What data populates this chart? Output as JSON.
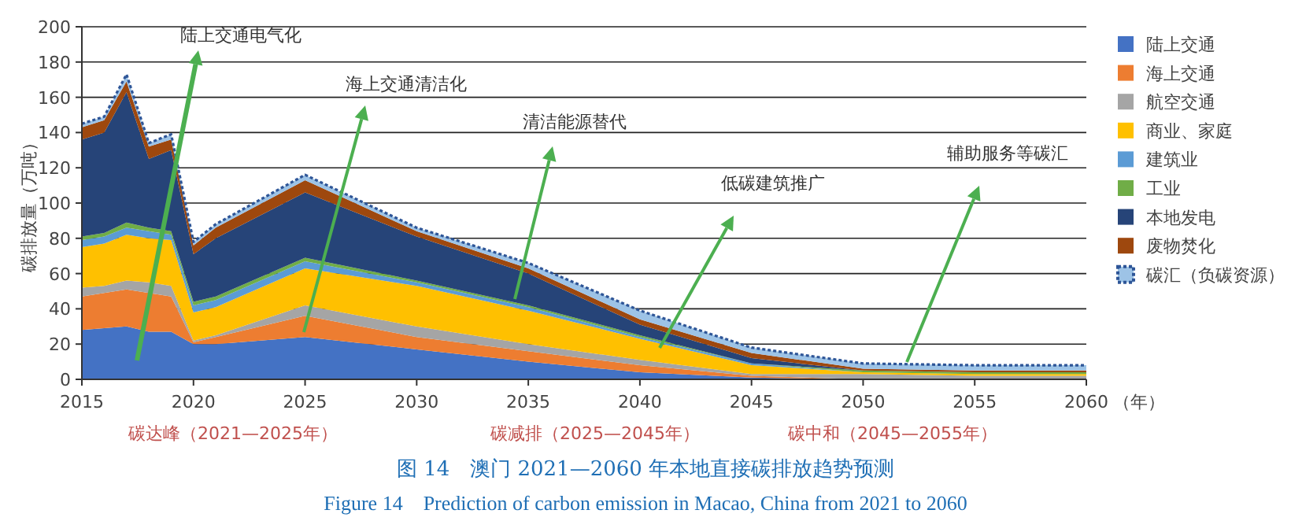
{
  "chart_data": {
    "type": "area",
    "stacked": true,
    "title": "图 14　澳门 2021—2060 年本地直接碳排放趋势预测",
    "subtitle": "Figure 14　Prediction of carbon emission in Macao, China from 2021 to 2060",
    "xlabel": "（年）",
    "ylabel": "碳排放量（万吨）",
    "x": [
      2015,
      2016,
      2017,
      2018,
      2019,
      2020,
      2021,
      2025,
      2030,
      2035,
      2040,
      2045,
      2050,
      2055,
      2060
    ],
    "series": [
      {
        "name": "陆上交通",
        "color": "#4472c4",
        "values": [
          28,
          29,
          30,
          27,
          27,
          20,
          20,
          24,
          17,
          10,
          4,
          1,
          0,
          0,
          0
        ]
      },
      {
        "name": "海上交通",
        "color": "#ed7d31",
        "values": [
          19,
          20,
          21,
          22,
          20,
          1,
          4,
          12,
          7,
          6,
          4,
          1,
          0,
          0,
          0
        ]
      },
      {
        "name": "航空交通",
        "color": "#a5a5a5",
        "values": [
          5,
          4,
          5,
          6,
          6,
          1,
          1,
          6,
          6,
          4,
          3,
          1,
          3,
          2,
          2
        ]
      },
      {
        "name": "商业、家庭",
        "color": "#ffc000",
        "values": [
          23,
          24,
          26,
          25,
          26,
          16,
          16,
          21,
          23,
          19,
          12,
          5,
          1,
          1,
          1
        ]
      },
      {
        "name": "建筑业",
        "color": "#5b9bd5",
        "values": [
          4,
          4,
          4,
          4,
          3,
          4,
          4,
          4,
          2,
          2,
          1,
          1,
          0,
          0,
          0
        ]
      },
      {
        "name": "工业",
        "color": "#70ad47",
        "values": [
          2,
          2,
          3,
          2,
          2,
          2,
          2,
          2,
          1,
          1,
          1,
          0,
          1,
          1,
          1
        ]
      },
      {
        "name": "本地发电",
        "color": "#264478",
        "values": [
          55,
          57,
          74,
          39,
          46,
          27,
          33,
          37,
          25,
          18,
          6,
          3,
          0,
          0,
          0
        ]
      },
      {
        "name": "废物焚化",
        "color": "#9e480e",
        "values": [
          7,
          7,
          6,
          7,
          6,
          5,
          6,
          7,
          3,
          3,
          3,
          3,
          1,
          1,
          1
        ]
      },
      {
        "name": "碳汇（负碳资源）",
        "color": "#9dc3e6",
        "line_style": "dotted",
        "values": [
          2,
          2,
          4,
          2,
          3,
          2,
          2,
          3,
          2,
          3,
          5,
          3,
          3,
          3,
          3
        ]
      }
    ],
    "xlim": [
      2015,
      2060
    ],
    "xticks": [
      2015,
      2020,
      2025,
      2030,
      2035,
      2040,
      2045,
      2050,
      2055,
      2060
    ],
    "ylim": [
      0,
      200
    ],
    "yticks": [
      0,
      20,
      40,
      60,
      80,
      100,
      120,
      140,
      160,
      180,
      200
    ],
    "grid": "y",
    "legend": "right",
    "annotations": [
      "陆上交通电气化",
      "海上交通清洁化",
      "清洁能源替代",
      "低碳建筑推广",
      "辅助服务等碳汇",
      "碳达峰（2021—2025年）",
      "碳减排（2025—2045年）",
      "碳中和（2045—2055年）"
    ]
  }
}
